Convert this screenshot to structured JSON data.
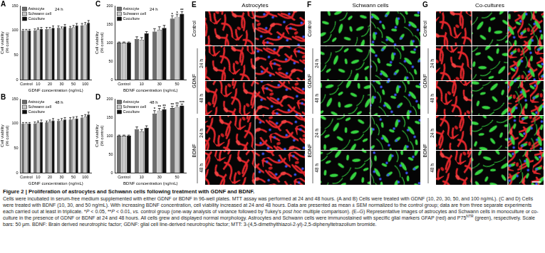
{
  "chart_data": [
    {
      "panel": "A",
      "type": "bar",
      "title": "24 h",
      "x_label": "GDNF concentration (ng/mL)",
      "y_label": [
        "Cell viability",
        "(% control)"
      ],
      "categories": [
        "Control",
        "10",
        "20",
        "30",
        "50",
        "100"
      ],
      "series": [
        {
          "name": "Astrocyte",
          "color": "#6d6d6d",
          "values": [
            100,
            100,
            103,
            105,
            105,
            110
          ],
          "errors": [
            2,
            3,
            3,
            4,
            3,
            4
          ],
          "significance": [
            null,
            null,
            null,
            null,
            null,
            null
          ]
        },
        {
          "name": "Schwann cell",
          "color": "#c8c8c8",
          "values": [
            100,
            102,
            103,
            104,
            106,
            112
          ],
          "errors": [
            2,
            3,
            3,
            3,
            4,
            4
          ],
          "significance": [
            null,
            null,
            null,
            null,
            null,
            null
          ]
        },
        {
          "name": "Coculture",
          "color": "#111111",
          "values": [
            100,
            103,
            105,
            108,
            110,
            115
          ],
          "errors": [
            2,
            3,
            4,
            4,
            4,
            5
          ],
          "significance": [
            null,
            null,
            null,
            null,
            null,
            null
          ]
        }
      ],
      "ylim": [
        0,
        150
      ],
      "yticks": [
        0,
        50,
        100,
        150
      ],
      "grid": false,
      "legend": "top-left"
    },
    {
      "panel": "B",
      "type": "bar",
      "title": "48 h",
      "x_label": "GDNF concentration (ng/mL)",
      "y_label": [
        "Cell viability",
        "(% control)"
      ],
      "categories": [
        "Control",
        "10",
        "20",
        "30",
        "50",
        "100"
      ],
      "series": [
        {
          "name": "Astrocyte",
          "color": "#6d6d6d",
          "values": [
            100,
            100,
            102,
            105,
            108,
            112
          ],
          "errors": [
            2,
            3,
            3,
            3,
            4,
            4
          ],
          "significance": [
            null,
            null,
            null,
            null,
            null,
            null
          ]
        },
        {
          "name": "Schwann cell",
          "color": "#c8c8c8",
          "values": [
            100,
            102,
            104,
            106,
            109,
            114
          ],
          "errors": [
            2,
            3,
            3,
            4,
            4,
            4
          ],
          "significance": [
            null,
            null,
            null,
            null,
            null,
            null
          ]
        },
        {
          "name": "Coculture",
          "color": "#111111",
          "values": [
            100,
            103,
            106,
            108,
            110,
            118
          ],
          "errors": [
            2,
            4,
            4,
            4,
            4,
            5
          ],
          "significance": [
            null,
            null,
            null,
            null,
            null,
            null
          ]
        }
      ],
      "ylim": [
        0,
        150
      ],
      "yticks": [
        0,
        50,
        100,
        150
      ],
      "grid": false,
      "legend": "top-left"
    },
    {
      "panel": "C",
      "type": "bar",
      "title": "24 h",
      "x_label": "BDNF concentration (ng/mL)",
      "y_label": [
        "Cell viability",
        "(% control)"
      ],
      "categories": [
        "Control",
        "10",
        "30",
        "50"
      ],
      "series": [
        {
          "name": "Astrocyte",
          "color": "#6d6d6d",
          "values": [
            100,
            110,
            130,
            165
          ],
          "errors": [
            2,
            6,
            8,
            8
          ],
          "significance": [
            null,
            null,
            null,
            "*"
          ]
        },
        {
          "name": "Schwann cell",
          "color": "#c8c8c8",
          "values": [
            100,
            108,
            135,
            170
          ],
          "errors": [
            2,
            6,
            8,
            7
          ],
          "significance": [
            null,
            null,
            null,
            "*"
          ]
        },
        {
          "name": "Coculture",
          "color": "#111111",
          "values": [
            100,
            125,
            140,
            178
          ],
          "errors": [
            2,
            5,
            7,
            6
          ],
          "significance": [
            null,
            null,
            null,
            "**"
          ]
        }
      ],
      "ylim": [
        0,
        200
      ],
      "yticks": [
        0,
        50,
        100,
        150,
        200
      ],
      "grid": false,
      "legend": "top-left"
    },
    {
      "panel": "D",
      "type": "bar",
      "title": "48 h",
      "x_label": "BDNF concentration (ng/mL)",
      "y_label": [
        "Cell viability",
        "(% control)"
      ],
      "categories": [
        "Control",
        "10",
        "30",
        "50"
      ],
      "series": [
        {
          "name": "Astrocyte",
          "color": "#6d6d6d",
          "values": [
            100,
            118,
            160,
            175
          ],
          "errors": [
            2,
            6,
            8,
            5
          ],
          "significance": [
            null,
            null,
            "*",
            "**"
          ]
        },
        {
          "name": "Schwann cell",
          "color": "#c8c8c8",
          "values": [
            100,
            112,
            168,
            178
          ],
          "errors": [
            2,
            5,
            6,
            5
          ],
          "significance": [
            null,
            null,
            "**",
            "**"
          ]
        },
        {
          "name": "Coculture",
          "color": "#111111",
          "values": [
            100,
            122,
            172,
            182
          ],
          "errors": [
            2,
            5,
            5,
            4
          ],
          "significance": [
            null,
            null,
            "**",
            "***"
          ]
        }
      ],
      "ylim": [
        0,
        200
      ],
      "yticks": [
        0,
        50,
        100,
        150,
        200
      ],
      "grid": false,
      "legend": "top-left"
    }
  ],
  "image_panels": {
    "rows": [
      {
        "label": "Control",
        "times": []
      },
      {
        "label": "GDNF",
        "times": [
          "24 h",
          "48 h"
        ]
      },
      {
        "label": "BDNF",
        "times": [
          "24 h",
          "48 h"
        ]
      }
    ],
    "panels": [
      {
        "letter": "E",
        "title": "Astrocytes"
      },
      {
        "letter": "F",
        "title": "Schwann cells"
      },
      {
        "letter": "G",
        "title": "Co-cultures"
      }
    ]
  },
  "caption": {
    "title": "Figure 2 | Proliferation of astrocytes and Schwann cells following treatment with GDNF and BDNF.",
    "body": [
      {
        "text": "Cells were incubated in serum-free medium supplemented with either GDNF or BDNF in 96-well plates. MTT assay was performed at 24 and 48 hours. (A and B) Cells were treated with GDNF (10, 20, 30, 50, and 100 ng/mL). (C and D) Cells were treated with BDNF (10, 30, and 50 ng/mL). With increasing BDNF concentration, cell viability increased at 24 and 48 hours. Data are presented as mean ± SEM normalized to the control group; data are from three separate experiments each carried out at least in triplicate. *"
      },
      {
        "text": "P",
        "style": "italic"
      },
      {
        "text": " < 0.05, **"
      },
      {
        "text": "P",
        "style": "italic"
      },
      {
        "text": " < 0.01, "
      },
      {
        "text": "vs.",
        "style": "italic"
      },
      {
        "text": " control group (one-way analysis of variance followed by Tukey's "
      },
      {
        "text": "post hoc",
        "style": "italic"
      },
      {
        "text": " multiple comparison). (E–G) Representative images of astrocytes and Schwann cells in monoculture or co-culture in the presence of GDNF or BDNF at 24 and 48 hours. All cells grew and displayed normal morphology. Astrocytes and Schwann cells were immunostained with specific glial markers GFAP (red) and P75"
      },
      {
        "text": "NTR",
        "style": "sup"
      },
      {
        "text": " (green), respectively. Scale bars: 50 μm. BDNF: Brain derived neurotrophic factor; GDNF: glial cell line-derived neurotrophic factor; MTT: 3-(4,5-dimethylthiazol-2-yl)-2,5-diphenyltetrazolium bromide."
      }
    ]
  }
}
